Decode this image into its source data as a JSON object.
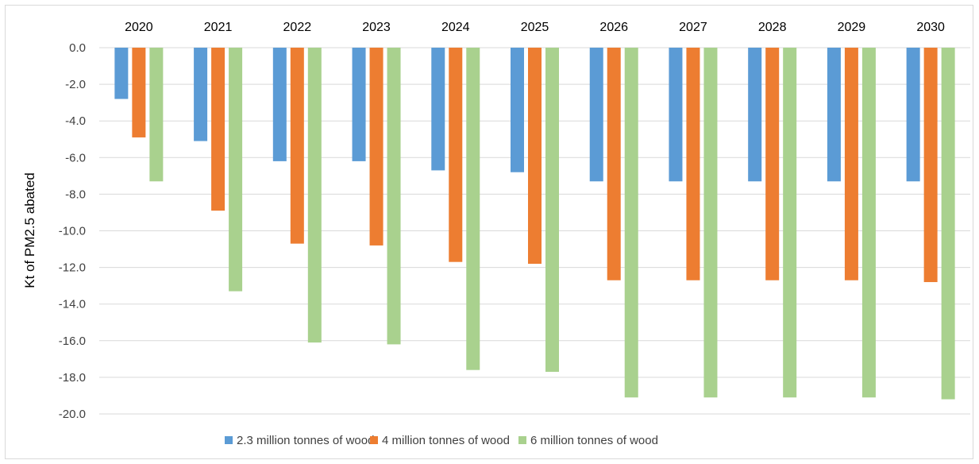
{
  "chart_data": {
    "type": "bar",
    "title": "",
    "xlabel": "",
    "ylabel": "Kt of PM2.5 abated",
    "ylim": [
      -20,
      0
    ],
    "ytick_step": 2,
    "ytick_labels": [
      "0.0",
      "-2.0",
      "-4.0",
      "-6.0",
      "-8.0",
      "-10.0",
      "-12.0",
      "-14.0",
      "-16.0",
      "-18.0",
      "-20.0"
    ],
    "categories": [
      "2020",
      "2021",
      "2022",
      "2023",
      "2024",
      "2025",
      "2026",
      "2027",
      "2028",
      "2029",
      "2030"
    ],
    "category_axis_position": "top",
    "grid": true,
    "legend_position": "bottom",
    "series": [
      {
        "name": "2.3 million tonnes of wood",
        "color": "#5b9bd5",
        "values": [
          -2.8,
          -5.1,
          -6.2,
          -6.2,
          -6.7,
          -6.8,
          -7.3,
          -7.3,
          -7.3,
          -7.3,
          -7.3
        ]
      },
      {
        "name": "4 million tonnes of wood",
        "color": "#ed7d31",
        "values": [
          -4.9,
          -8.9,
          -10.7,
          -10.8,
          -11.7,
          -11.8,
          -12.7,
          -12.7,
          -12.7,
          -12.7,
          -12.8
        ]
      },
      {
        "name": "6 million tonnes of wood",
        "color": "#a9d18e",
        "values": [
          -7.3,
          -13.3,
          -16.1,
          -16.2,
          -17.6,
          -17.7,
          -19.1,
          -19.1,
          -19.1,
          -19.1,
          -19.2
        ]
      }
    ]
  }
}
